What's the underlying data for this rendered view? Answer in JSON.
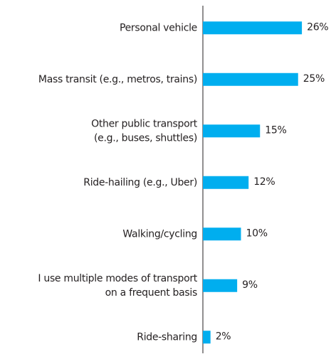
{
  "chart_data": {
    "type": "bar",
    "orientation": "horizontal",
    "categories": [
      [
        "Personal vehicle"
      ],
      [
        "Mass transit (e.g., metros, trains)"
      ],
      [
        "Other public transport",
        "(e.g., buses, shuttles)"
      ],
      [
        "Ride-hailing (e.g., Uber)"
      ],
      [
        "Walking/cycling"
      ],
      [
        "I use multiple modes of transport",
        "on a frequent basis"
      ],
      [
        "Ride-sharing"
      ]
    ],
    "values": [
      26,
      25,
      15,
      12,
      10,
      9,
      2
    ],
    "value_labels": [
      "26%",
      "25%",
      "15%",
      "12%",
      "10%",
      "9%",
      "2%"
    ],
    "color": "#00aeef",
    "xlim": [
      0,
      30
    ]
  }
}
